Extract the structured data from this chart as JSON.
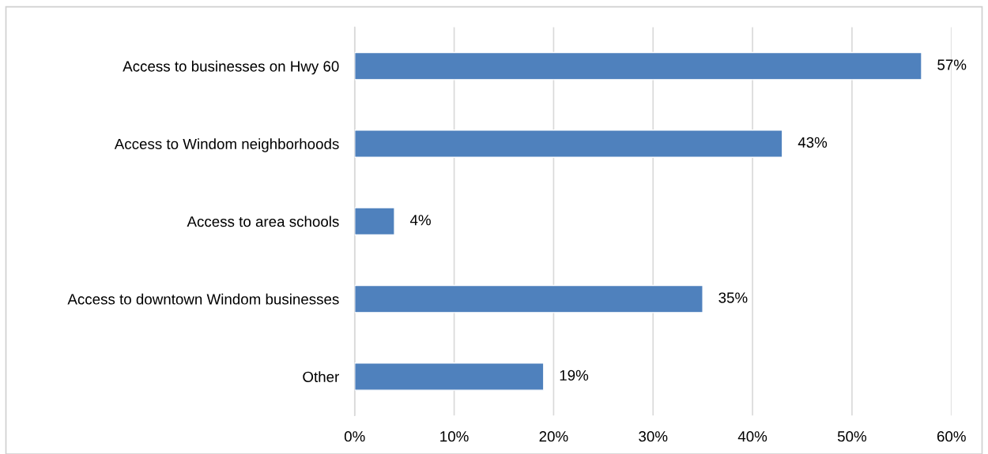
{
  "chart_data": {
    "type": "bar",
    "orientation": "horizontal",
    "categories": [
      "Access to businesses on Hwy 60",
      "Access to Windom neighborhoods",
      "Access to area schools",
      "Access to downtown Windom businesses",
      "Other"
    ],
    "values": [
      57,
      43,
      4,
      35,
      19
    ],
    "value_labels": [
      "57%",
      "43%",
      "4%",
      "35%",
      "19%"
    ],
    "color": "#4f81bd",
    "xlim": [
      0,
      60
    ],
    "xticks": [
      {
        "value": 0,
        "label": "0%"
      },
      {
        "value": 10,
        "label": "10%"
      },
      {
        "value": 20,
        "label": "20%"
      },
      {
        "value": 30,
        "label": "30%"
      },
      {
        "value": 40,
        "label": "40%"
      },
      {
        "value": 50,
        "label": "50%"
      },
      {
        "value": 60,
        "label": "60%"
      }
    ],
    "grid": "x",
    "legend": false
  }
}
